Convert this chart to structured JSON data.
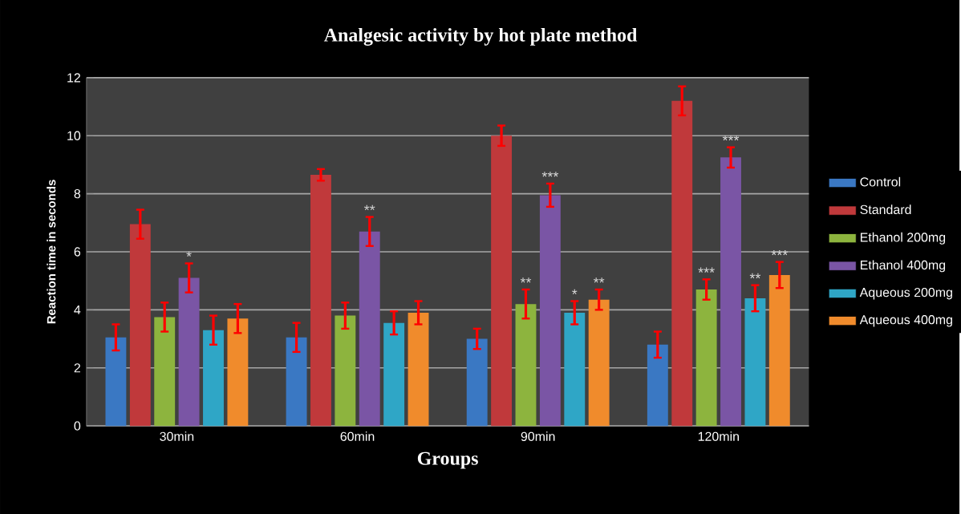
{
  "chart_data": {
    "type": "bar",
    "title": "Analgesic activity by hot plate method",
    "xlabel": "Groups",
    "ylabel": "Reaction time in seconds",
    "categories": [
      "30min",
      "60min",
      "90min",
      "120min"
    ],
    "series": [
      {
        "name": "Control",
        "color": "#3a78c3",
        "values": [
          3.05,
          3.05,
          3.0,
          2.8
        ],
        "errors": [
          0.45,
          0.5,
          0.35,
          0.45
        ]
      },
      {
        "name": "Standard",
        "color": "#c0393b",
        "values": [
          6.95,
          8.65,
          10.0,
          11.2
        ],
        "errors": [
          0.5,
          0.2,
          0.35,
          0.5
        ]
      },
      {
        "name": "Ethanol 200mg",
        "color": "#8db43e",
        "values": [
          3.75,
          3.8,
          4.2,
          4.7
        ],
        "errors": [
          0.5,
          0.45,
          0.5,
          0.35
        ],
        "value_labels": [
          null,
          null,
          "**",
          "***"
        ]
      },
      {
        "name": "Ethanol 400mg",
        "color": "#7a55a5",
        "values": [
          5.1,
          6.7,
          7.95,
          9.25
        ],
        "errors": [
          0.5,
          0.5,
          0.4,
          0.35
        ],
        "value_labels": [
          "*",
          "**",
          "***",
          "***"
        ]
      },
      {
        "name": "Aqueous 200mg",
        "color": "#2fa6c6",
        "values": [
          3.3,
          3.55,
          3.9,
          4.4
        ],
        "errors": [
          0.5,
          0.4,
          0.4,
          0.45
        ],
        "value_labels": [
          null,
          null,
          "*",
          "**"
        ]
      },
      {
        "name": "Aqueous 400mg",
        "color": "#f08b2c",
        "values": [
          3.7,
          3.9,
          4.35,
          5.2
        ],
        "errors": [
          0.5,
          0.4,
          0.35,
          0.45
        ],
        "value_labels": [
          null,
          null,
          "**",
          "***"
        ]
      }
    ],
    "ylim": [
      0,
      12
    ],
    "yticks": [
      0,
      2,
      4,
      6,
      8,
      10,
      12
    ],
    "grid": "y",
    "legend": "right"
  }
}
